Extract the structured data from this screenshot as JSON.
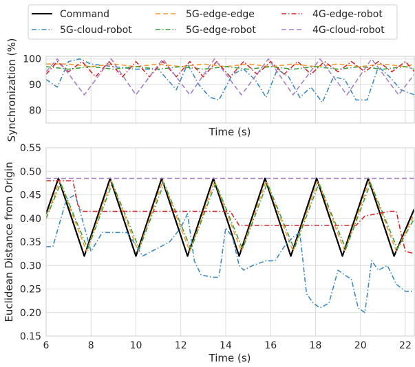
{
  "legend": [
    {
      "name": "Command",
      "color": "#000000",
      "dash": "solid"
    },
    {
      "name": "5G-cloud-robot",
      "color": "#3b8bc2",
      "dash": "dashdot"
    },
    {
      "name": "5G-edge-edge",
      "color": "#ff9933",
      "dash": "dashed"
    },
    {
      "name": "5G-edge-robot",
      "color": "#3aa03a",
      "dash": "dashdot"
    },
    {
      "name": "4G-edge-robot",
      "color": "#d62728",
      "dash": "dashdot"
    },
    {
      "name": "4G-cloud-robot",
      "color": "#a67fcb",
      "dash": "dashed"
    }
  ],
  "chart_data": [
    {
      "type": "line",
      "xlabel": "Time (s)",
      "ylabel": "Synchronization (%)",
      "xlim": [
        6,
        22.4
      ],
      "ylim": [
        75,
        101
      ],
      "yticks": [
        80,
        90,
        100
      ],
      "grid": true,
      "series": [
        {
          "name": "5G-cloud-robot",
          "x": [
            6,
            6.5,
            7,
            7.5,
            8,
            9,
            10,
            11,
            11.8,
            12.3,
            12.8,
            13.3,
            13.7,
            14.3,
            14.8,
            15.3,
            15.8,
            16.3,
            16.8,
            17.3,
            17.8,
            18.3,
            18.8,
            19.3,
            19.8,
            20.3,
            20.8,
            21.3,
            21.8,
            22.4
          ],
          "y": [
            92,
            89,
            99,
            100,
            98,
            97,
            96,
            96,
            88,
            98,
            90,
            85,
            84,
            94,
            96,
            92,
            85,
            96,
            93,
            85,
            89,
            83,
            93,
            92,
            84,
            84,
            97,
            93,
            88,
            86
          ]
        },
        {
          "name": "5G-edge-edge",
          "x": [
            6,
            7,
            8,
            9,
            10,
            11,
            12,
            13,
            14,
            15,
            16,
            17,
            18,
            19,
            20,
            21,
            22,
            22.4
          ],
          "y": [
            98,
            98,
            97,
            98,
            97,
            98,
            97,
            98,
            97,
            98,
            97,
            98,
            97,
            98,
            97,
            98,
            97,
            98
          ]
        },
        {
          "name": "5G-edge-robot",
          "x": [
            6,
            7,
            8,
            9,
            10,
            11,
            12,
            13,
            14,
            15,
            16,
            17,
            18,
            19,
            20,
            21,
            22,
            22.4
          ],
          "y": [
            97,
            96,
            97,
            96,
            97,
            96,
            97,
            96,
            97,
            96,
            97,
            96,
            97,
            96,
            97,
            96,
            97,
            96
          ]
        },
        {
          "name": "4G-edge-robot",
          "x": [
            6,
            6.5,
            7,
            7.6,
            8.2,
            8.8,
            9.4,
            10,
            10.6,
            11.2,
            11.8,
            12.4,
            13,
            13.6,
            14.2,
            14.8,
            15.4,
            16,
            16.6,
            17.2,
            17.8,
            18.4,
            19,
            19.6,
            20.2,
            20.8,
            21.4,
            22,
            22.4
          ],
          "y": [
            94,
            99,
            95,
            99,
            93,
            99,
            93,
            99,
            93,
            99,
            93,
            99,
            93,
            99,
            93,
            99,
            94,
            99,
            94,
            99,
            94,
            99,
            95,
            99,
            95,
            99,
            95,
            99,
            95
          ]
        },
        {
          "name": "4G-cloud-robot",
          "x": [
            6,
            6.5,
            7.7,
            8.9,
            10,
            11.2,
            12.4,
            13.5,
            14.7,
            15.9,
            17,
            18.2,
            19.4,
            20.5,
            21.7,
            22.4
          ],
          "y": [
            95,
            100,
            86,
            100,
            86,
            100,
            86,
            100,
            86,
            100,
            86,
            100,
            86,
            100,
            86,
            94
          ]
        }
      ]
    },
    {
      "type": "line",
      "xlabel": "Time (s)",
      "ylabel": "Euclidean Distance from Origin",
      "xlim": [
        6,
        22.4
      ],
      "ylim": [
        0.15,
        0.55
      ],
      "xticks": [
        6,
        8,
        10,
        12,
        14,
        16,
        18,
        20,
        22
      ],
      "yticks": [
        0.15,
        0.2,
        0.25,
        0.3,
        0.35,
        0.4,
        0.45,
        0.5,
        0.55
      ],
      "grid": true,
      "series": [
        {
          "name": "Command",
          "x": [
            6,
            6.55,
            7.7,
            8.85,
            10,
            11.15,
            12.3,
            13.45,
            14.6,
            15.75,
            16.9,
            18.05,
            19.2,
            20.35,
            21.5,
            22.4
          ],
          "y": [
            0.41,
            0.485,
            0.32,
            0.485,
            0.32,
            0.485,
            0.32,
            0.485,
            0.32,
            0.485,
            0.32,
            0.485,
            0.32,
            0.485,
            0.32,
            0.42
          ]
        },
        {
          "name": "5G-edge-edge",
          "x": [
            6,
            6.6,
            7.8,
            8.9,
            10.1,
            11.2,
            12.4,
            13.5,
            14.7,
            15.8,
            17,
            18.1,
            19.3,
            20.4,
            21.6,
            22.4
          ],
          "y": [
            0.4,
            0.48,
            0.33,
            0.48,
            0.33,
            0.48,
            0.33,
            0.48,
            0.33,
            0.48,
            0.33,
            0.48,
            0.33,
            0.48,
            0.33,
            0.41
          ]
        },
        {
          "name": "5G-edge-robot",
          "x": [
            6,
            6.65,
            7.85,
            8.95,
            10.15,
            11.25,
            12.45,
            13.55,
            14.75,
            15.85,
            17.05,
            18.15,
            19.35,
            20.45,
            21.65,
            22.4
          ],
          "y": [
            0.4,
            0.475,
            0.335,
            0.475,
            0.335,
            0.475,
            0.335,
            0.475,
            0.335,
            0.475,
            0.335,
            0.475,
            0.335,
            0.475,
            0.335,
            0.4
          ]
        },
        {
          "name": "5G-cloud-robot",
          "x": [
            6,
            6.3,
            6.6,
            6.9,
            7.3,
            7.6,
            8,
            8.5,
            9.2,
            9.6,
            9.9,
            10.3,
            10.7,
            11.1,
            11.5,
            12,
            12.3,
            12.6,
            12.9,
            13.4,
            13.7,
            14,
            14.3,
            14.6,
            14.8,
            15.2,
            15.8,
            16.2,
            16.6,
            17,
            17.3,
            17.6,
            17.9,
            18.2,
            18.6,
            19,
            19.3,
            19.6,
            19.9,
            20.2,
            20.5,
            20.8,
            21.2,
            21.6,
            22,
            22.4
          ],
          "y": [
            0.34,
            0.34,
            0.39,
            0.44,
            0.45,
            0.4,
            0.33,
            0.37,
            0.37,
            0.37,
            0.35,
            0.32,
            0.33,
            0.34,
            0.35,
            0.38,
            0.41,
            0.31,
            0.28,
            0.275,
            0.275,
            0.38,
            0.36,
            0.3,
            0.29,
            0.3,
            0.31,
            0.31,
            0.34,
            0.36,
            0.37,
            0.24,
            0.22,
            0.21,
            0.22,
            0.29,
            0.28,
            0.27,
            0.21,
            0.2,
            0.31,
            0.29,
            0.3,
            0.26,
            0.245,
            0.245
          ]
        },
        {
          "name": "4G-edge-robot",
          "x": [
            6,
            7.2,
            7.4,
            7.6,
            8.5,
            14.2,
            14.4,
            14.6,
            15.5,
            19.8,
            20.2,
            21.3,
            21.6,
            21.8,
            22,
            22.4
          ],
          "y": [
            0.48,
            0.48,
            0.43,
            0.415,
            0.415,
            0.415,
            0.4,
            0.385,
            0.385,
            0.385,
            0.405,
            0.415,
            0.415,
            0.37,
            0.33,
            0.325
          ]
        },
        {
          "name": "4G-cloud-robot",
          "x": [
            6,
            22.4
          ],
          "y": [
            0.485,
            0.485
          ]
        }
      ]
    }
  ]
}
